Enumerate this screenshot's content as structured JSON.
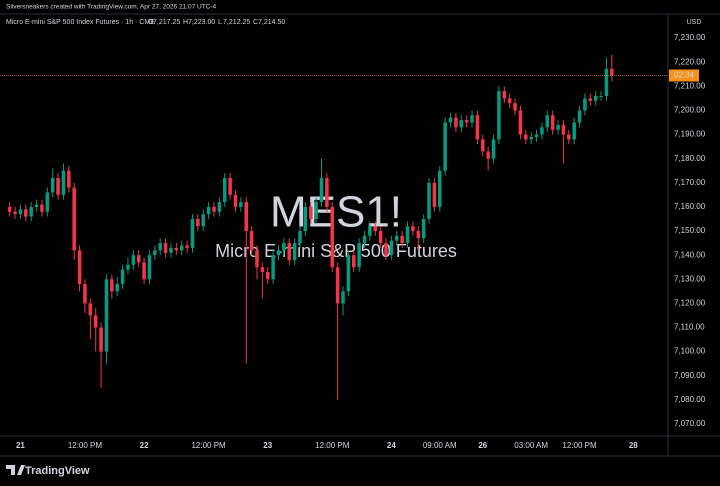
{
  "header": {
    "attribution": "Silversneakers created with TradingView.com, Apr 27, 2026 21:07 UTC-4"
  },
  "footer": {
    "brand": "TradingView"
  },
  "chart_data": {
    "type": "candlestick",
    "title": "Micro E-mini S&P 500 Index Futures · 1h · CME",
    "last_bar_labels": [
      {
        "key": "O",
        "text": "7,217.25"
      },
      {
        "key": "H",
        "text": "7,223.00"
      },
      {
        "key": "L",
        "text": "7,212.25"
      },
      {
        "key": "C",
        "text": "7,214.50"
      }
    ],
    "watermark": {
      "symbol": "MES1!",
      "description": "Micro E-mini S&P 500 Futures"
    },
    "currency": "USD",
    "countdown": "02:34",
    "up_color": "#089981",
    "down_color": "#f23645",
    "price_line_color": "#e8733a",
    "grid": false,
    "categories": [
      null,
      null,
      "21",
      null,
      null,
      null,
      null,
      null,
      null,
      null,
      null,
      null,
      null,
      null,
      "12:00 PM",
      null,
      null,
      null,
      null,
      null,
      null,
      null,
      null,
      null,
      null,
      "22",
      null,
      null,
      null,
      null,
      null,
      null,
      null,
      null,
      null,
      null,
      null,
      "12:00 PM",
      null,
      null,
      null,
      null,
      null,
      null,
      null,
      null,
      null,
      null,
      "23",
      null,
      null,
      null,
      null,
      null,
      null,
      null,
      null,
      null,
      null,
      null,
      "12:00 PM",
      null,
      null,
      null,
      null,
      null,
      null,
      null,
      null,
      null,
      null,
      "24",
      null,
      null,
      null,
      null,
      null,
      null,
      null,
      null,
      "09:00 AM",
      null,
      null,
      null,
      null,
      null,
      null,
      null,
      "26",
      null,
      null,
      null,
      null,
      null,
      null,
      null,
      null,
      "03:00 AM",
      null,
      null,
      null,
      null,
      null,
      null,
      null,
      null,
      "12:00 PM",
      null,
      null,
      null,
      null,
      null,
      null,
      null,
      null,
      null,
      "28"
    ],
    "open": [
      7160,
      7158,
      7157,
      7159,
      7156,
      7160,
      7161,
      7158,
      7166,
      7172,
      7165,
      7175,
      7168,
      7142,
      7128,
      7120,
      7115,
      7110,
      7100,
      7130,
      7125,
      7128,
      7134,
      7136,
      7140,
      7137,
      7130,
      7140,
      7142,
      7145,
      7141,
      7143,
      7142,
      7144,
      7143,
      7155,
      7152,
      7157,
      7160,
      7158,
      7162,
      7172,
      7165,
      7160,
      7162,
      7150,
      7142,
      7135,
      7133,
      7130,
      7140,
      7142,
      7145,
      7138,
      7145,
      7150,
      7160,
      7155,
      7162,
      7172,
      7160,
      7135,
      7120,
      7125,
      7140,
      7135,
      7145,
      7148,
      7152,
      7150,
      7145,
      7140,
      7146,
      7148,
      7145,
      7152,
      7150,
      7147,
      7155,
      7170,
      7160,
      7175,
      7195,
      7197,
      7193,
      7196,
      7195,
      7198,
      7188,
      7183,
      7180,
      7188,
      7208,
      7205,
      7203,
      7200,
      7190,
      7188,
      7189,
      7190,
      7193,
      7198,
      7192,
      7194,
      7190,
      7188,
      7195,
      7200,
      7205,
      7204,
      7206,
      7206,
      7217.25,
      null,
      null,
      null,
      null
    ],
    "high": [
      7162,
      7160,
      7161,
      7161,
      7162,
      7163,
      7163,
      7168,
      7176,
      7174,
      7178,
      7177,
      7170,
      7144,
      7130,
      7122,
      7118,
      7112,
      7132,
      7132,
      7131,
      7136,
      7139,
      7142,
      7142,
      7139,
      7142,
      7144,
      7147,
      7147,
      7145,
      7145,
      7146,
      7146,
      7157,
      7157,
      7159,
      7162,
      7162,
      7164,
      7174,
      7174,
      7167,
      7164,
      7164,
      7152,
      7144,
      7137,
      7135,
      7142,
      7144,
      7147,
      7147,
      7147,
      7152,
      7162,
      7162,
      7164,
      7180,
      7174,
      7162,
      7137,
      7127,
      7142,
      7142,
      7147,
      7150,
      7154,
      7154,
      7152,
      7147,
      7148,
      7150,
      7150,
      7154,
      7154,
      7152,
      7157,
      7172,
      7172,
      7177,
      7197,
      7199,
      7199,
      7198,
      7198,
      7200,
      7200,
      7190,
      7185,
      7190,
      7210,
      7210,
      7207,
      7205,
      7202,
      7192,
      7191,
      7192,
      7195,
      7200,
      7200,
      7196,
      7196,
      7192,
      7197,
      7202,
      7207,
      7207,
      7208,
      7208,
      7222,
      7223,
      null,
      null,
      null,
      null
    ],
    "low": [
      7156,
      7155,
      7155,
      7154,
      7154,
      7158,
      7156,
      7156,
      7164,
      7163,
      7163,
      7166,
      7138,
      7125,
      7116,
      7105,
      7100,
      7085,
      7095,
      7122,
      7123,
      7126,
      7132,
      7134,
      7135,
      7128,
      7128,
      7138,
      7140,
      7139,
      7139,
      7140,
      7140,
      7141,
      7141,
      7150,
      7150,
      7155,
      7156,
      7156,
      7160,
      7163,
      7158,
      7158,
      7095,
      7140,
      7130,
      7122,
      7128,
      7128,
      7138,
      7140,
      7136,
      7136,
      7143,
      7148,
      7153,
      7153,
      7160,
      7158,
      7133,
      7080,
      7115,
      7123,
      7133,
      7133,
      7143,
      7146,
      7148,
      7143,
      7138,
      7138,
      7144,
      7143,
      7143,
      7148,
      7142,
      7145,
      7153,
      7158,
      7158,
      7173,
      7193,
      7191,
      7191,
      7193,
      7193,
      7186,
      7181,
      7175,
      7178,
      7186,
      7203,
      7201,
      7198,
      7188,
      7186,
      7186,
      7187,
      7188,
      7191,
      7190,
      7190,
      7178,
      7186,
      7186,
      7193,
      7198,
      7202,
      7202,
      7204,
      7204,
      7212.25,
      null,
      null,
      null,
      null
    ],
    "close": [
      7158,
      7157,
      7159,
      7156,
      7160,
      7161,
      7158,
      7166,
      7172,
      7165,
      7175,
      7168,
      7142,
      7128,
      7120,
      7115,
      7110,
      7100,
      7130,
      7125,
      7128,
      7134,
      7136,
      7140,
      7137,
      7130,
      7140,
      7142,
      7145,
      7141,
      7143,
      7142,
      7144,
      7143,
      7155,
      7152,
      7157,
      7160,
      7158,
      7162,
      7172,
      7165,
      7160,
      7162,
      7150,
      7142,
      7135,
      7133,
      7130,
      7140,
      7142,
      7145,
      7138,
      7145,
      7150,
      7160,
      7155,
      7162,
      7172,
      7160,
      7135,
      7120,
      7125,
      7140,
      7135,
      7145,
      7148,
      7152,
      7150,
      7145,
      7140,
      7146,
      7148,
      7145,
      7152,
      7150,
      7147,
      7155,
      7170,
      7160,
      7175,
      7195,
      7197,
      7193,
      7196,
      7195,
      7198,
      7188,
      7183,
      7180,
      7188,
      7208,
      7205,
      7203,
      7200,
      7190,
      7188,
      7189,
      7190,
      7193,
      7198,
      7192,
      7194,
      7190,
      7188,
      7195,
      7200,
      7205,
      7204,
      7206,
      7206,
      7217.25,
      7214.5,
      null,
      null,
      null,
      null
    ],
    "ylim": [
      7065,
      7240
    ],
    "yticks": [
      {
        "value": 7070,
        "label": "7,070.00"
      },
      {
        "value": 7080,
        "label": "7,080.00"
      },
      {
        "value": 7090,
        "label": "7,090.00"
      },
      {
        "value": 7100,
        "label": "7,100.00"
      },
      {
        "value": 7110,
        "label": "7,110.00"
      },
      {
        "value": 7120,
        "label": "7,120.00"
      },
      {
        "value": 7130,
        "label": "7,130.00"
      },
      {
        "value": 7140,
        "label": "7,140.00"
      },
      {
        "value": 7150,
        "label": "7,150.00"
      },
      {
        "value": 7160,
        "label": "7,160.00"
      },
      {
        "value": 7170,
        "label": "7,170.00"
      },
      {
        "value": 7180,
        "label": "7,180.00"
      },
      {
        "value": 7190,
        "label": "7,190.00"
      },
      {
        "value": 7200,
        "label": "7,200.00"
      },
      {
        "value": 7210,
        "label": "7,210.00"
      },
      {
        "value": 7220,
        "label": "7,220.00"
      },
      {
        "value": 7230,
        "label": "7,230.00"
      }
    ]
  }
}
